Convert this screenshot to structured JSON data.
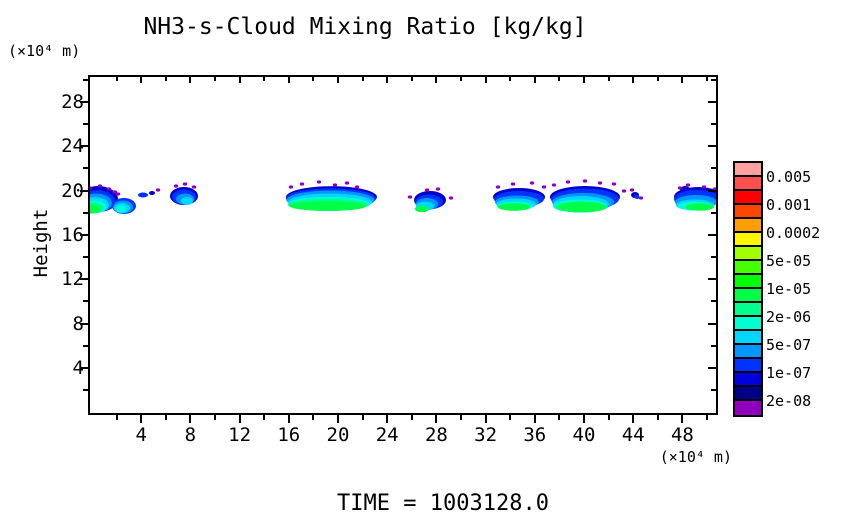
{
  "title": "NH3-s-Cloud Mixing Ratio [kg/kg]",
  "caption": "TIME  =  1003128.0",
  "axes": {
    "x": {
      "unit_label": "(×10⁴ m)",
      "major_ticks": [
        4,
        8,
        12,
        16,
        20,
        24,
        28,
        32,
        36,
        40,
        44,
        48
      ],
      "minor_tick_step": 2,
      "range_1e4_m": [
        0,
        51
      ]
    },
    "y": {
      "title": "Height",
      "unit_label": "(×10⁴ m)",
      "major_ticks": [
        28,
        24,
        20,
        16,
        12,
        8,
        4
      ],
      "minor_tick_step": 2,
      "range_1e4_m": [
        0,
        30.5
      ]
    }
  },
  "colorbar": {
    "labels": [
      "0.005",
      "0.001",
      "0.0002",
      "5e-05",
      "1e-05",
      "2e-06",
      "5e-07",
      "1e-07",
      "2e-08"
    ],
    "colors_top_to_bottom": [
      "#FFA0A0",
      "#FF5050",
      "#FF0000",
      "#FF4600",
      "#FFA000",
      "#FFF500",
      "#A0FF00",
      "#46FF00",
      "#00FF00",
      "#00FF46",
      "#00FF8C",
      "#00FFD2",
      "#00D7FF",
      "#0096FF",
      "#0033FF",
      "#0000DC",
      "#000087",
      "#9100BE"
    ]
  },
  "chart_data": {
    "type": "heatmap",
    "title": "NH3-s-Cloud Mixing Ratio [kg/kg]",
    "xlabel": "(×10⁴ m)",
    "ylabel": "Height (×10⁴ m)",
    "x_range": [
      0,
      51
    ],
    "y_range": [
      0,
      30.5
    ],
    "grid": false,
    "legend_position": "right-colorbar",
    "time": "1003128.0",
    "levels_labeled_kg_per_kg": [
      "0.005",
      "0.001",
      "0.0002",
      "5e-05",
      "1e-05",
      "2e-06",
      "5e-07",
      "1e-07",
      "2e-08"
    ],
    "cloud_band": {
      "height_range_1e4_m": [
        18.0,
        20.5
      ],
      "patch_x_ranges_1e4_m": [
        [
          0,
          2.6
        ],
        [
          2.6,
          4.2
        ],
        [
          6.9,
          8.9
        ],
        [
          16.1,
          23.4
        ],
        [
          26.4,
          29.0
        ],
        [
          32.9,
          37.3
        ],
        [
          37.6,
          43.0
        ],
        [
          43.6,
          44.3
        ],
        [
          47.6,
          51.0
        ]
      ],
      "max_level_reached": "~2e-05 (green core)"
    },
    "palette": {
      "p": "#9100BE",
      "n": "#0000CD",
      "b": "#0033FF",
      "d": "#0096FF",
      "c": "#00D7FF",
      "t": "#00FFD2",
      "s": "#00FF8C",
      "g": "#00FF46"
    },
    "patches": [
      {
        "name": "A",
        "layers": [
          [
            "n",
            10,
            124,
            20,
            13
          ],
          [
            "b",
            9,
            126,
            18,
            11
          ],
          [
            "d",
            8,
            128,
            16,
            9.5
          ],
          [
            "c",
            7,
            130,
            14,
            8
          ],
          [
            "t",
            6,
            132,
            12,
            6.5
          ],
          [
            "s",
            5,
            133,
            10,
            5.5
          ],
          [
            "g",
            4,
            134,
            8,
            4.5
          ]
        ],
        "specks": [
          [
            2,
            113
          ],
          [
            12,
            111
          ],
          [
            21,
            114
          ],
          [
            27,
            117
          ]
        ]
      },
      {
        "name": "B",
        "layers": [
          [
            "b",
            36,
            131,
            12,
            8
          ],
          [
            "d",
            35,
            132,
            10,
            6.5
          ],
          [
            "c",
            34,
            133,
            8,
            5
          ],
          [
            "t",
            33,
            134,
            5,
            3.5
          ]
        ],
        "specks": [
          [
            30,
            119
          ]
        ]
      },
      {
        "name": "dash",
        "layers": [
          [
            "b",
            55,
            120,
            5,
            2.5
          ],
          [
            "n",
            64,
            118,
            3,
            2
          ]
        ],
        "specks": [
          [
            70,
            115
          ]
        ]
      },
      {
        "name": "C",
        "layers": [
          [
            "n",
            96,
            121,
            14,
            9
          ],
          [
            "b",
            96,
            122,
            12,
            7.5
          ],
          [
            "d",
            97,
            124,
            9,
            5.5
          ],
          [
            "c",
            99,
            126,
            6,
            4
          ]
        ],
        "specks": [
          [
            88,
            111
          ],
          [
            97,
            109
          ],
          [
            106,
            112
          ]
        ]
      },
      {
        "name": "D",
        "layers": [
          [
            "n",
            243.5,
            122,
            45.5,
            10.8
          ],
          [
            "b",
            243,
            123.5,
            45,
            10.2
          ],
          [
            "d",
            242.5,
            125,
            44,
            9.5
          ],
          [
            "c",
            242,
            127,
            42,
            8.5
          ],
          [
            "t",
            241,
            129,
            41,
            7
          ],
          [
            "s",
            240,
            130,
            40,
            6
          ],
          [
            "g",
            240,
            131,
            38,
            4.8
          ]
        ],
        "specks": [
          [
            203,
            112
          ],
          [
            214,
            109
          ],
          [
            231,
            107
          ],
          [
            247,
            110
          ],
          [
            259,
            108
          ],
          [
            269,
            112
          ]
        ]
      },
      {
        "name": "E",
        "layers": [
          [
            "n",
            342,
            125,
            16,
            9
          ],
          [
            "b",
            341,
            127,
            14,
            7.5
          ],
          [
            "d",
            339,
            129,
            11,
            6
          ],
          [
            "c",
            337,
            131,
            9,
            4.5
          ],
          [
            "g",
            334,
            134,
            7,
            3.2
          ]
        ],
        "specks": [
          [
            322,
            122
          ],
          [
            339,
            115
          ],
          [
            350,
            114
          ],
          [
            363,
            123
          ]
        ]
      },
      {
        "name": "F",
        "layers": [
          [
            "n",
            431,
            122,
            26,
            9
          ],
          [
            "b",
            431,
            124,
            25,
            8
          ],
          [
            "d",
            429,
            127,
            22,
            6.5
          ],
          [
            "c",
            428,
            129,
            20,
            5.5
          ],
          [
            "t",
            427,
            131,
            18,
            4.5
          ],
          [
            "g",
            426,
            132,
            16,
            3.8
          ]
        ],
        "specks": [
          [
            410,
            112
          ],
          [
            425,
            109
          ],
          [
            444,
            108
          ],
          [
            456,
            112
          ]
        ]
      },
      {
        "name": "G",
        "layers": [
          [
            "n",
            497,
            122,
            35,
            11
          ],
          [
            "b",
            497,
            124,
            34,
            10.5
          ],
          [
            "d",
            495,
            127,
            31,
            9
          ],
          [
            "c",
            493,
            129,
            28,
            8
          ],
          [
            "t",
            492,
            131,
            27,
            6.5
          ],
          [
            "s",
            493,
            132,
            26,
            5.5
          ],
          [
            "g",
            494,
            132,
            24,
            5
          ]
        ],
        "specks": [
          [
            466,
            110
          ],
          [
            480,
            107
          ],
          [
            497,
            106
          ],
          [
            512,
            108
          ],
          [
            526,
            109
          ],
          [
            536,
            116
          ]
        ]
      },
      {
        "name": "speck-group",
        "layers": [
          [
            "n",
            547,
            120,
            4,
            3
          ],
          [
            "b",
            549,
            122,
            2.5,
            2
          ]
        ],
        "specks": [
          [
            544,
            115
          ],
          [
            553,
            123
          ]
        ]
      },
      {
        "name": "H",
        "layers": [
          [
            "n",
            610,
            122,
            24,
            10
          ],
          [
            "n",
            597,
            115,
            5,
            4
          ],
          [
            "b",
            609,
            124,
            23,
            9
          ],
          [
            "d",
            608,
            127,
            21,
            7
          ],
          [
            "c",
            607,
            130,
            19,
            5.5
          ],
          [
            "t",
            607,
            131,
            17,
            4.5
          ],
          [
            "g",
            612,
            132,
            14,
            3.6
          ]
        ],
        "specks": [
          [
            592,
            113
          ],
          [
            600,
            110
          ],
          [
            616,
            112
          ],
          [
            627,
            114
          ]
        ]
      }
    ]
  }
}
